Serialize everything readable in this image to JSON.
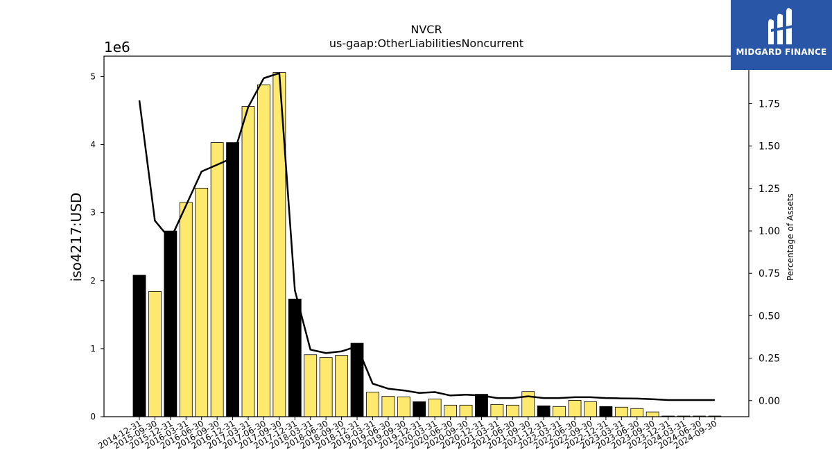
{
  "brand": {
    "name": "MIDGARD FINANCE",
    "color": "#2a56a8"
  },
  "chart_data": {
    "type": "bar",
    "title": "NVCR",
    "subtitle": "us-gaap:OtherLiabilitiesNoncurrent",
    "ylabel": "iso4217:USD",
    "y2label": "Percentage of Assets",
    "y_scale_label": "1e6",
    "ylim": [
      0,
      5.3
    ],
    "y_ticks": [
      0,
      1,
      2,
      3,
      4,
      5
    ],
    "y2lim": [
      -0.095,
      2.03
    ],
    "y2_ticks": [
      "0.00",
      "0.25",
      "0.50",
      "0.75",
      "1.00",
      "1.25",
      "1.50",
      "1.75"
    ],
    "categories": [
      "2014-12-31",
      "2015-09-30",
      "2015-12-31",
      "2016-03-31",
      "2016-06-30",
      "2016-09-30",
      "2016-12-31",
      "2017-03-31",
      "2017-06-30",
      "2017-09-30",
      "2017-12-31",
      "2018-03-31",
      "2018-06-30",
      "2018-09-30",
      "2018-12-31",
      "2019-03-31",
      "2019-06-30",
      "2019-09-30",
      "2019-12-31",
      "2020-03-31",
      "2020-06-30",
      "2020-09-30",
      "2020-12-31",
      "2021-03-31",
      "2021-06-30",
      "2021-09-30",
      "2021-12-31",
      "2022-03-31",
      "2022-06-30",
      "2022-09-30",
      "2022-12-31",
      "2023-03-31",
      "2023-06-30",
      "2023-09-30",
      "2023-12-31",
      "2024-03-31",
      "2024-06-30",
      "2024-09-30"
    ],
    "series": [
      {
        "values": [
          2.08,
          1.84,
          2.73,
          3.15,
          3.36,
          4.03,
          4.03,
          4.56,
          4.88,
          5.06,
          1.73,
          0.91,
          0.87,
          0.9,
          1.08,
          0.36,
          0.3,
          0.29,
          0.22,
          0.26,
          0.17,
          0.17,
          0.33,
          0.18,
          0.17,
          0.37,
          0.16,
          0.15,
          0.24,
          0.22,
          0.15,
          0.14,
          0.12,
          0.07,
          0.01,
          0.01,
          0.01,
          0.01
        ],
        "year_end": [
          true,
          false,
          true,
          false,
          false,
          false,
          true,
          false,
          false,
          false,
          true,
          false,
          false,
          false,
          true,
          false,
          false,
          false,
          true,
          false,
          false,
          false,
          true,
          false,
          false,
          false,
          true,
          false,
          false,
          false,
          true,
          false,
          false,
          false,
          true,
          false,
          false,
          false
        ],
        "color_year_end": "#000000",
        "color_quarter": "#fde96e"
      },
      {
        "type": "line",
        "axis": "right",
        "values": [
          1.77,
          1.06,
          0.95,
          1.15,
          1.35,
          1.39,
          1.43,
          1.73,
          1.9,
          1.93,
          0.65,
          0.3,
          0.28,
          0.29,
          0.32,
          0.1,
          0.07,
          0.06,
          0.045,
          0.05,
          0.03,
          0.035,
          0.03,
          0.015,
          0.015,
          0.025,
          0.015,
          0.015,
          0.02,
          0.02,
          0.015,
          0.013,
          0.012,
          0.008,
          0.003,
          0.003,
          0.003,
          0.003
        ],
        "color": "#000000"
      }
    ]
  }
}
